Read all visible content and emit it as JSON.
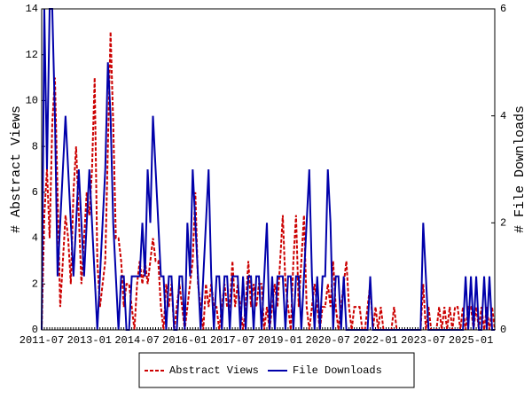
{
  "chart_data": {
    "type": "line",
    "y_label": "# Abstract Views",
    "y2_label": "# File Downloads",
    "categories": [
      "2011-07",
      null,
      null,
      null,
      null,
      null,
      null,
      null,
      null,
      null,
      null,
      null,
      null,
      null,
      null,
      null,
      null,
      null,
      "2013-01",
      null,
      null,
      null,
      null,
      null,
      null,
      null,
      null,
      null,
      null,
      null,
      null,
      null,
      null,
      null,
      null,
      null,
      "2014-07",
      null,
      null,
      null,
      null,
      null,
      null,
      null,
      null,
      null,
      null,
      null,
      null,
      null,
      null,
      null,
      null,
      null,
      "2016-01",
      null,
      null,
      null,
      null,
      null,
      null,
      null,
      null,
      null,
      null,
      null,
      null,
      null,
      null,
      null,
      null,
      null,
      "2017-07",
      null,
      null,
      null,
      null,
      null,
      null,
      null,
      null,
      null,
      null,
      null,
      null,
      null,
      null,
      null,
      null,
      null,
      "2019-01",
      null,
      null,
      null,
      null,
      null,
      null,
      null,
      null,
      null,
      null,
      null,
      null,
      null,
      null,
      null,
      null,
      null,
      "2020-07",
      null,
      null,
      null,
      null,
      null,
      null,
      null,
      null,
      null,
      null,
      null,
      null,
      null,
      null,
      null,
      null,
      null,
      "2022-01",
      null,
      null,
      null,
      null,
      null,
      null,
      null,
      null,
      null,
      null,
      null,
      null,
      null,
      null,
      null,
      null,
      null,
      "2023-07",
      null,
      null,
      null,
      null,
      null,
      null,
      null,
      null,
      null,
      null,
      null,
      null,
      null,
      null,
      null,
      null,
      null,
      "2025-01",
      null,
      null,
      null,
      null,
      null,
      null,
      null,
      null,
      null
    ],
    "series": [
      {
        "name": "Abstract Views",
        "color": "#cc0000",
        "dash": true,
        "values": [
          0,
          5,
          7,
          4,
          9,
          11,
          6,
          1,
          3,
          5,
          4,
          2,
          6,
          8,
          5,
          2,
          4,
          6,
          5,
          7,
          11,
          3,
          1,
          2,
          3,
          8,
          13,
          9,
          4,
          4,
          3,
          1,
          2,
          2,
          1,
          0,
          2,
          3,
          2,
          3,
          2,
          3,
          4,
          3,
          3,
          1,
          0,
          2,
          1,
          2,
          0,
          1,
          2,
          1,
          0,
          1,
          2,
          3,
          6,
          2,
          1,
          0,
          2,
          1,
          2,
          1,
          1,
          0,
          1,
          2,
          1,
          1,
          3,
          1,
          2,
          1,
          0,
          1,
          3,
          1,
          2,
          1,
          2,
          2,
          0,
          1,
          0,
          1,
          2,
          1,
          3,
          5,
          2,
          1,
          0,
          3,
          5,
          1,
          3,
          5,
          1,
          0,
          1,
          2,
          1,
          0,
          1,
          1,
          2,
          1,
          3,
          1,
          0,
          1,
          2,
          3,
          1,
          0,
          1,
          1,
          1,
          0,
          0,
          1,
          2,
          0,
          1,
          0,
          1,
          0,
          0,
          0,
          0,
          1,
          0,
          0,
          0,
          0,
          0,
          0,
          0,
          0,
          0,
          0,
          2,
          0,
          1,
          0,
          0,
          0,
          1,
          0,
          1,
          0,
          1,
          0,
          1,
          1,
          0,
          1,
          0,
          1,
          1,
          0,
          1,
          0,
          1,
          0,
          1,
          0,
          1,
          0
        ]
      },
      {
        "name": "File Downloads",
        "color": "#0000aa",
        "axis": "y2",
        "values": [
          0,
          6,
          3,
          6,
          6,
          4,
          1,
          2,
          3,
          4,
          3,
          2,
          1,
          2,
          3,
          2,
          1,
          2,
          3,
          2,
          1,
          0,
          1,
          2,
          3,
          5,
          4,
          2,
          1,
          0,
          1,
          1,
          0,
          0,
          1,
          1,
          1,
          1,
          2,
          1,
          3,
          2,
          4,
          3,
          2,
          1,
          1,
          0,
          1,
          1,
          0,
          0,
          1,
          1,
          0,
          2,
          1,
          3,
          2,
          1,
          0,
          1,
          2,
          3,
          1,
          0,
          1,
          1,
          0,
          1,
          1,
          0,
          1,
          1,
          1,
          0,
          1,
          0,
          1,
          1,
          0,
          1,
          1,
          0,
          1,
          2,
          0,
          1,
          0,
          1,
          1,
          1,
          0,
          1,
          1,
          0,
          1,
          1,
          0,
          1,
          2,
          3,
          1,
          0,
          1,
          0,
          1,
          1,
          3,
          2,
          0,
          1,
          1,
          0,
          1,
          0,
          0,
          0,
          0,
          0,
          0,
          0,
          0,
          0,
          1,
          0,
          0,
          0,
          0,
          0,
          0,
          0,
          0,
          0,
          0,
          0,
          0,
          0,
          0,
          0,
          0,
          0,
          0,
          0,
          2,
          1,
          0,
          0,
          0,
          0,
          0,
          0,
          0,
          0,
          0,
          0,
          0,
          0,
          0,
          0,
          1,
          0,
          1,
          0,
          1,
          0,
          0,
          1,
          0,
          1,
          0,
          0
        ]
      }
    ],
    "ylim": [
      0,
      14
    ],
    "yticks": [
      0,
      2,
      4,
      6,
      8,
      10,
      12,
      14
    ],
    "y2lim": [
      0,
      6
    ],
    "y2ticks": [
      0,
      2,
      4,
      6
    ]
  }
}
